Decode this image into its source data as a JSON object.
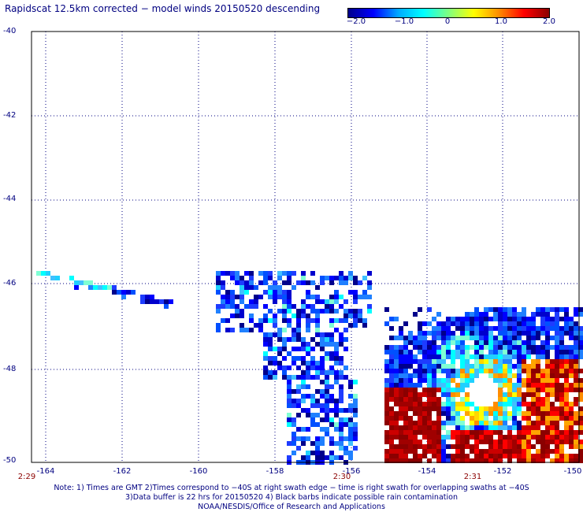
{
  "title": "Rapidscat 12.5km corrected − model winds 20150520 descending",
  "colorbar": {
    "labels": [
      "−2.0",
      "−1.0",
      "0",
      "1.0",
      "2.0"
    ],
    "colors": [
      "#00008b",
      "#0000ff",
      "#00aaff",
      "#00ffff",
      "#7fff7f",
      "#ffff00",
      "#ff8c00",
      "#ff0000",
      "#8b0000"
    ]
  },
  "map": {
    "lat_labels": [
      "-40",
      "-42",
      "-44",
      "-46",
      "-48",
      "-50"
    ],
    "lon_labels": [
      "-164",
      "-162",
      "-160",
      "-158",
      "-156",
      "-154",
      "-152",
      "-150"
    ],
    "time_labels": [
      "2:29",
      "2:30",
      "2:31"
    ],
    "grid": "dotted",
    "lon_range": [
      -165,
      -150
    ],
    "lat_range": [
      -50,
      -40
    ]
  },
  "notes": [
    "Note: 1) Times are GMT 2)Times correspond to −40S at right swath edge − time is right swath for overlapping swaths at −40S",
    "3)Data buffer is 22 hrs for 20150520 4) Black barbs indicate possible rain contamination",
    "NOAA/NESDIS/Office of Research and Applications"
  ]
}
